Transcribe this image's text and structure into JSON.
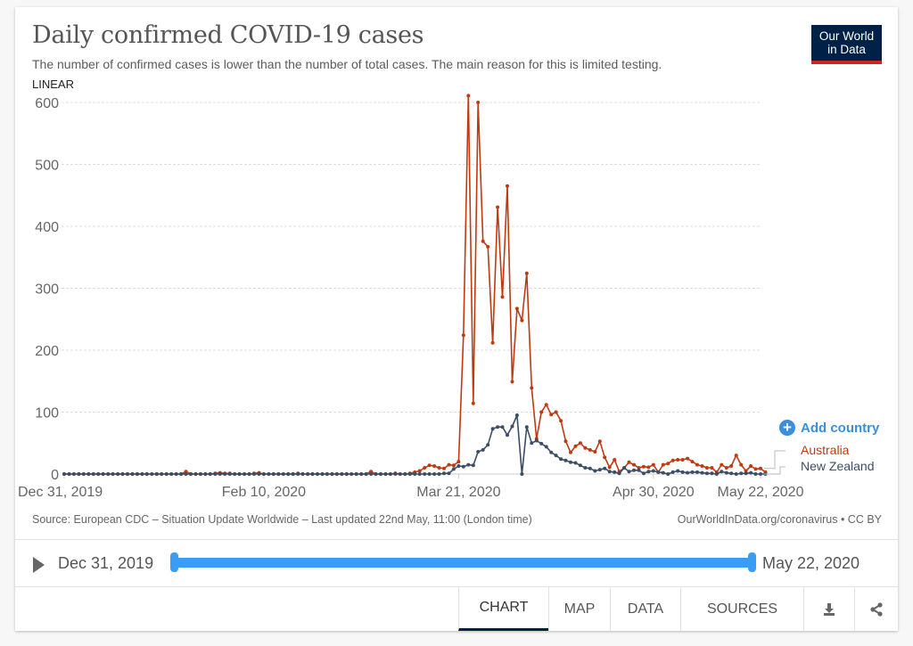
{
  "header": {
    "title": "Daily confirmed COVID-19 cases",
    "subtitle": "The number of confirmed cases is lower than the number of total cases. The main reason for this is limited testing.",
    "scale_toggle": "LINEAR",
    "logo_line1": "Our World",
    "logo_line2": "in Data"
  },
  "add_country": {
    "icon": "plus-circle-icon",
    "label": "Add country"
  },
  "footer": {
    "source": "Source: European CDC – Situation Update Worldwide – Last updated 22nd May, 11:00 (London time)",
    "url": "OurWorldInData.org/coronavirus • CC BY"
  },
  "timeline": {
    "start_label": "Dec 31, 2019",
    "end_label": "May 22, 2020",
    "play_icon": "play-icon",
    "selected_start_fraction": 0,
    "selected_end_fraction": 1
  },
  "tabs": [
    {
      "label": "CHART",
      "active": true
    },
    {
      "label": "MAP",
      "active": false
    },
    {
      "label": "DATA",
      "active": false
    },
    {
      "label": "SOURCES",
      "active": false
    },
    {
      "icon": "download-icon"
    },
    {
      "icon": "share-icon"
    }
  ],
  "colors": {
    "australia": "#be3b11",
    "new_zealand": "#3c4e66",
    "accent": "#3b9cf6",
    "brand": "#002147",
    "brand_stripe": "#ce261e"
  },
  "chart_data": {
    "type": "line",
    "title": "Daily confirmed COVID-19 cases",
    "xlabel": "",
    "ylabel": "",
    "ylim": [
      0,
      600
    ],
    "yticks": [
      "0",
      "100",
      "200",
      "300",
      "400",
      "500",
      "600"
    ],
    "ytick_values": [
      0,
      100,
      200,
      300,
      400,
      500,
      600
    ],
    "xticks": [
      "Dec 31, 2019",
      "Feb 10, 2020",
      "Mar 21, 2020",
      "Apr 30, 2020",
      "May 22, 2020"
    ],
    "xtick_days": [
      0,
      41,
      81,
      121,
      143
    ],
    "x_start": "Dec 31, 2019",
    "x_days": 144,
    "grid": true,
    "legend_position": "right",
    "series": [
      {
        "name": "Australia",
        "values": [
          0,
          0,
          0,
          0,
          0,
          0,
          0,
          0,
          0,
          0,
          0,
          0,
          0,
          0,
          0,
          0,
          0,
          0,
          0,
          0,
          0,
          0,
          0,
          0,
          0,
          4,
          0,
          0,
          0,
          0,
          0,
          1,
          2,
          1,
          1,
          0,
          0,
          0,
          0,
          1,
          2,
          0,
          0,
          0,
          0,
          0,
          0,
          0,
          1,
          0,
          0,
          0,
          0,
          0,
          0,
          0,
          0,
          0,
          0,
          0,
          0,
          0,
          0,
          4,
          0,
          0,
          0,
          0,
          0,
          0,
          0,
          1,
          3,
          5,
          10,
          14,
          13,
          10,
          9,
          15,
          14,
          20,
          224,
          611,
          114,
          600,
          376,
          367,
          212,
          431,
          286,
          465,
          149,
          267,
          248,
          324,
          139,
          57,
          100,
          112,
          96,
          100,
          86,
          53,
          35,
          45,
          50,
          42,
          39,
          36,
          53,
          27,
          11,
          23,
          4,
          10,
          19,
          15,
          10,
          12,
          11,
          15,
          3,
          15,
          17,
          22,
          23,
          23,
          25,
          20,
          15,
          13,
          10,
          10,
          3,
          15,
          10,
          13,
          30,
          15,
          5,
          13,
          8,
          9,
          3
        ],
        "color": "#be3b11"
      },
      {
        "name": "New Zealand",
        "values": [
          0,
          0,
          0,
          0,
          0,
          0,
          0,
          0,
          0,
          0,
          0,
          0,
          0,
          0,
          0,
          0,
          0,
          0,
          0,
          0,
          0,
          0,
          0,
          0,
          0,
          0,
          0,
          0,
          0,
          0,
          0,
          0,
          0,
          0,
          0,
          0,
          0,
          0,
          0,
          0,
          0,
          0,
          0,
          0,
          0,
          0,
          0,
          0,
          0,
          0,
          0,
          0,
          0,
          0,
          0,
          0,
          0,
          0,
          0,
          0,
          0,
          0,
          0,
          0,
          0,
          0,
          0,
          0,
          1,
          0,
          0,
          0,
          0,
          0,
          0,
          0,
          0,
          0,
          1,
          1,
          8,
          13,
          12,
          15,
          14,
          36,
          39,
          47,
          73,
          76,
          76,
          63,
          77,
          95,
          0,
          76,
          50,
          54,
          49,
          44,
          35,
          30,
          24,
          22,
          19,
          18,
          14,
          10,
          9,
          5,
          7,
          9,
          4,
          3,
          1,
          10,
          4,
          6,
          6,
          1,
          4,
          5,
          3,
          2,
          0,
          3,
          5,
          3,
          2,
          3,
          3,
          2,
          1,
          1,
          0,
          4,
          2,
          1,
          0,
          1,
          1,
          2,
          0,
          0,
          0
        ]
      }
    ]
  }
}
